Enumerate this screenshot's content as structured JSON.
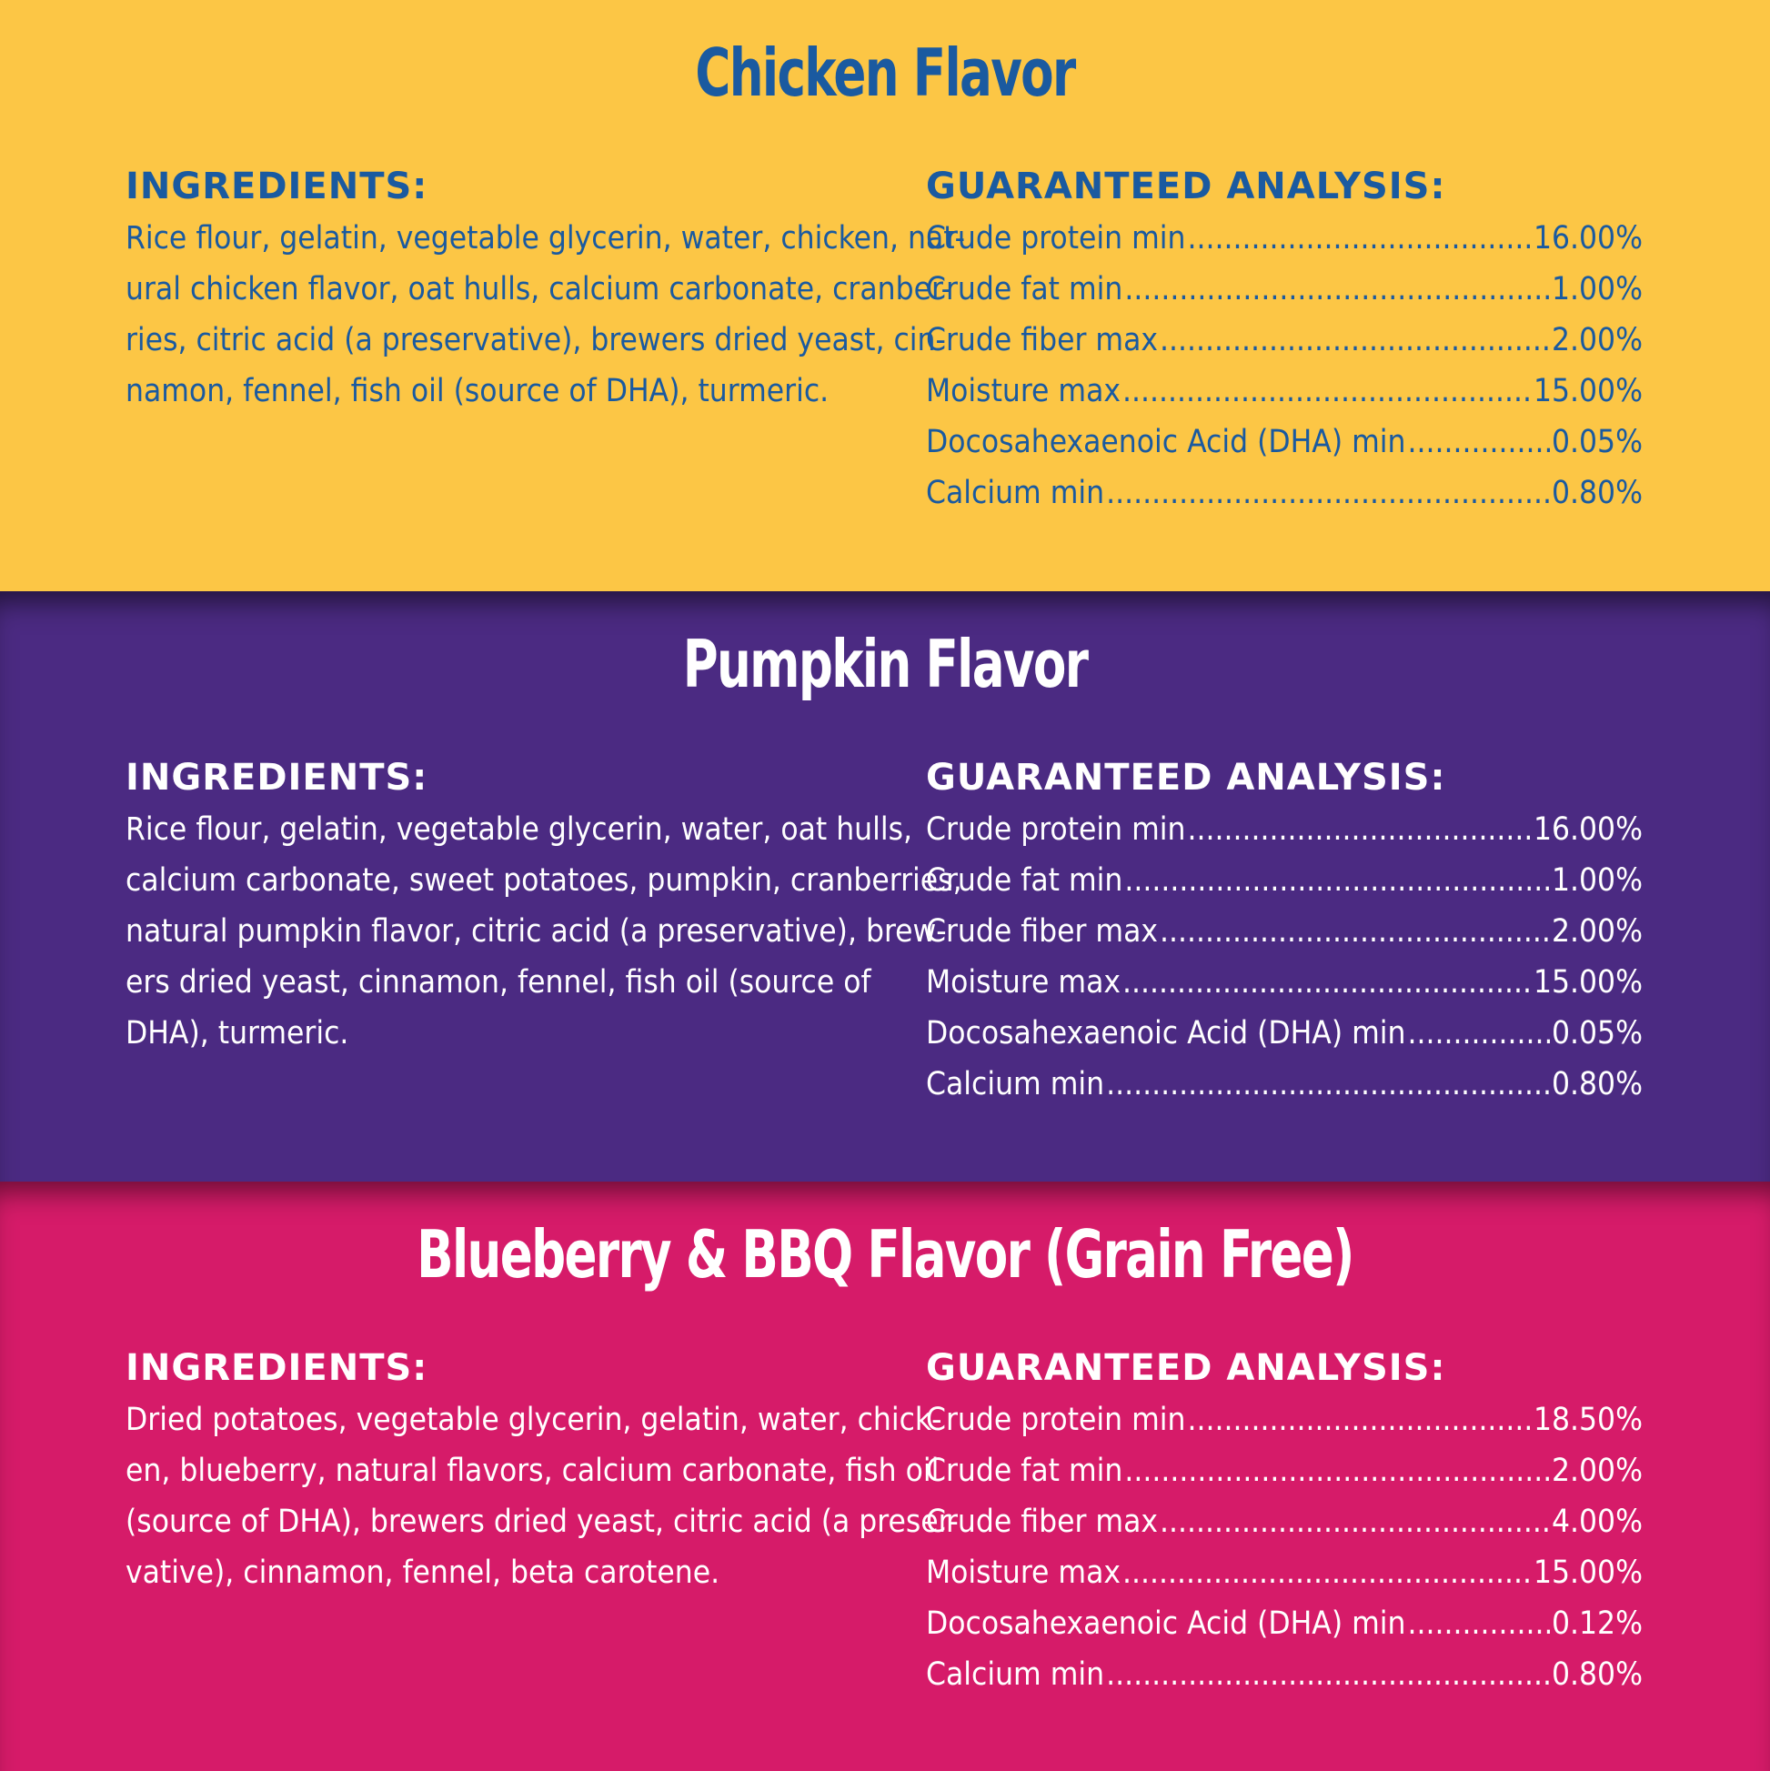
{
  "sections": [
    {
      "title": "Chicken Flavor",
      "ingredients_heading": "INGREDIENTS:",
      "ingredients_lines": [
        "Rice flour, gelatin, vegetable glycerin, water, chicken, nat-",
        "ural chicken flavor, oat hulls, calcium carbonate, cranber-",
        "ries, citric acid (a preservative), brewers dried yeast, cin-",
        "namon, fennel, fish oil (source of DHA), turmeric."
      ],
      "analysis_heading": "GUARANTEED ANALYSIS:",
      "analysis": [
        {
          "label": "Crude protein min",
          "value": "16.00%"
        },
        {
          "label": "Crude fat min",
          "value": "1.00%"
        },
        {
          "label": "Crude fiber max",
          "value": "2.00%"
        },
        {
          "label": "Moisture max",
          "value": "15.00%"
        },
        {
          "label": "Docosahexaenoic Acid (DHA) min",
          "value": "0.05%"
        },
        {
          "label": "Calcium min",
          "value": "0.80%"
        }
      ]
    },
    {
      "title": "Pumpkin Flavor",
      "ingredients_heading": "INGREDIENTS:",
      "ingredients_lines": [
        "Rice flour, gelatin, vegetable glycerin, water, oat hulls,",
        "calcium carbonate, sweet potatoes, pumpkin, cranberries,",
        "natural pumpkin flavor, citric acid (a preservative), brew-",
        "ers dried yeast, cinnamon, fennel, fish oil (source of",
        "DHA), turmeric."
      ],
      "analysis_heading": "GUARANTEED ANALYSIS:",
      "analysis": [
        {
          "label": "Crude protein min",
          "value": "16.00%"
        },
        {
          "label": "Crude fat min",
          "value": "1.00%"
        },
        {
          "label": "Crude fiber max",
          "value": "2.00%"
        },
        {
          "label": "Moisture max",
          "value": "15.00%"
        },
        {
          "label": "Docosahexaenoic Acid (DHA) min",
          "value": "0.05%"
        },
        {
          "label": "Calcium min",
          "value": "0.80%"
        }
      ]
    },
    {
      "title": "Blueberry & BBQ Flavor (Grain Free)",
      "ingredients_heading": "INGREDIENTS:",
      "ingredients_lines": [
        "Dried potatoes, vegetable glycerin, gelatin, water, chick-",
        "en, blueberry, natural flavors, calcium carbonate, fish oil",
        "(source of DHA), brewers dried yeast, citric acid (a preser-",
        "vative), cinnamon, fennel, beta carotene."
      ],
      "analysis_heading": "GUARANTEED ANALYSIS:",
      "analysis": [
        {
          "label": "Crude protein min",
          "value": "18.50%"
        },
        {
          "label": "Crude fat min",
          "value": "2.00%"
        },
        {
          "label": "Crude fiber max",
          "value": "4.00%"
        },
        {
          "label": "Moisture max",
          "value": "15.00%"
        },
        {
          "label": "Docosahexaenoic Acid (DHA) min",
          "value": "0.12%"
        },
        {
          "label": "Calcium min",
          "value": "0.80%"
        }
      ]
    }
  ]
}
